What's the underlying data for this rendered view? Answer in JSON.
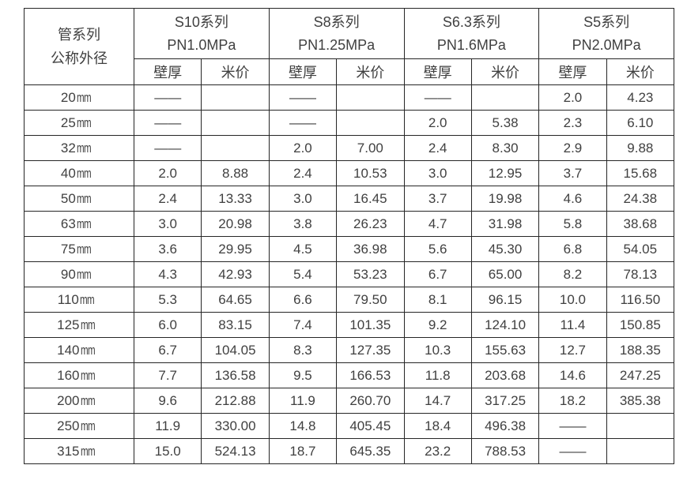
{
  "table": {
    "corner_header": {
      "line1": "管系列",
      "line2": "公称外径"
    },
    "series": [
      {
        "name": "S10系列",
        "pressure": "PN1.0MPa"
      },
      {
        "name": "S8系列",
        "pressure": "PN1.25MPa"
      },
      {
        "name": "S6.3系列",
        "pressure": "PN1.6MPa"
      },
      {
        "name": "S5系列",
        "pressure": "PN2.0MPa"
      }
    ],
    "sub_headers": {
      "thickness": "壁厚",
      "price": "米价"
    },
    "rows": [
      {
        "size": "20",
        "unit": "mm",
        "cells": [
          "——",
          "",
          "——",
          "",
          "——",
          "",
          "2.0",
          "4.23"
        ]
      },
      {
        "size": "25",
        "unit": "mm",
        "cells": [
          "——",
          "",
          "——",
          "",
          "2.0",
          "5.38",
          "2.3",
          "6.10"
        ]
      },
      {
        "size": "32",
        "unit": "mm",
        "cells": [
          "——",
          "",
          "2.0",
          "7.00",
          "2.4",
          "8.30",
          "2.9",
          "9.88"
        ]
      },
      {
        "size": "40",
        "unit": "mm",
        "cells": [
          "2.0",
          "8.88",
          "2.4",
          "10.53",
          "3.0",
          "12.95",
          "3.7",
          "15.68"
        ]
      },
      {
        "size": "50",
        "unit": "mm",
        "cells": [
          "2.4",
          "13.33",
          "3.0",
          "16.45",
          "3.7",
          "19.98",
          "4.6",
          "24.38"
        ]
      },
      {
        "size": "63",
        "unit": "mm",
        "cells": [
          "3.0",
          "20.98",
          "3.8",
          "26.23",
          "4.7",
          "31.98",
          "5.8",
          "38.68"
        ]
      },
      {
        "size": "75",
        "unit": "mm",
        "cells": [
          "3.6",
          "29.95",
          "4.5",
          "36.98",
          "5.6",
          "45.30",
          "6.8",
          "54.05"
        ]
      },
      {
        "size": "90",
        "unit": "mm",
        "cells": [
          "4.3",
          "42.93",
          "5.4",
          "53.23",
          "6.7",
          "65.00",
          "8.2",
          "78.13"
        ]
      },
      {
        "size": "110",
        "unit": "mm",
        "cells": [
          "5.3",
          "64.65",
          "6.6",
          "79.50",
          "8.1",
          "96.15",
          "10.0",
          "116.50"
        ]
      },
      {
        "size": "125",
        "unit": "mm",
        "cells": [
          "6.0",
          "83.15",
          "7.4",
          "101.35",
          "9.2",
          "124.10",
          "11.4",
          "150.85"
        ]
      },
      {
        "size": "140",
        "unit": "mm",
        "cells": [
          "6.7",
          "104.05",
          "8.3",
          "127.35",
          "10.3",
          "155.63",
          "12.7",
          "188.35"
        ]
      },
      {
        "size": "160",
        "unit": "mm",
        "cells": [
          "7.7",
          "136.58",
          "9.5",
          "166.53",
          "11.8",
          "203.68",
          "14.6",
          "247.25"
        ]
      },
      {
        "size": "200",
        "unit": "mm",
        "cells": [
          "9.6",
          "212.88",
          "11.9",
          "260.70",
          "14.7",
          "317.25",
          "18.2",
          "385.38"
        ]
      },
      {
        "size": "250",
        "unit": "mm",
        "cells": [
          "11.9",
          "330.00",
          "14.8",
          "405.45",
          "18.4",
          "496.38",
          "——",
          ""
        ]
      },
      {
        "size": "315",
        "unit": "mm",
        "cells": [
          "15.0",
          "524.13",
          "18.7",
          "645.35",
          "23.2",
          "788.53",
          "——",
          ""
        ]
      }
    ]
  },
  "colors": {
    "border": "#262626",
    "text": "#404040",
    "background": "#ffffff"
  }
}
